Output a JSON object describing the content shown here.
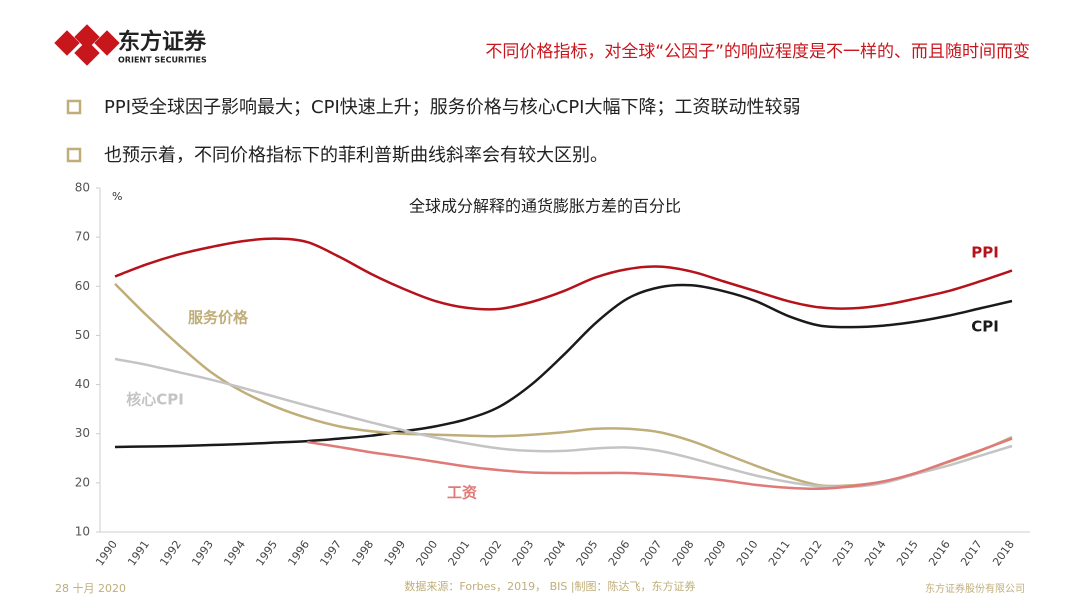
{
  "header": {
    "logo_cn": "东方证券",
    "logo_en": "ORIENT SECURITIES",
    "title": "不同价格指标，对全球“公因子”的响应程度是不一样的、而且随时间而变"
  },
  "bullets": [
    "PPI受全球因子影响最大；CPI快速上升；服务价格与核心CPI大幅下降；工资联动性较弱",
    "也预示着，不同价格指标下的菲利普斯曲线斜率会有较大区别。"
  ],
  "chart_data": {
    "type": "line",
    "title": "全球成分解释的通货膨胀方差的百分比",
    "y_label": "%",
    "categories": [
      "1990",
      "1991",
      "1992",
      "1993",
      "1994",
      "1995",
      "1996",
      "1997",
      "1998",
      "1999",
      "2000",
      "2001",
      "2002",
      "2003",
      "2004",
      "2005",
      "2006",
      "2007",
      "2008",
      "2009",
      "2010",
      "2011",
      "2012",
      "2013",
      "2014",
      "2015",
      "2016",
      "2017",
      "2018"
    ],
    "series": [
      {
        "name": "PPI",
        "color": "#b5121b",
        "values": [
          62,
          64.5,
          66.5,
          68,
          69.2,
          69.7,
          69,
          66,
          62.5,
          59.5,
          57,
          55.6,
          55.4,
          56.8,
          59,
          61.8,
          63.5,
          64,
          63,
          61,
          59,
          57,
          55.7,
          55.5,
          56.2,
          57.5,
          59,
          61,
          63.2
        ]
      },
      {
        "name": "CPI",
        "color": "#1a1a1a",
        "values": [
          27.3,
          27.4,
          27.5,
          27.7,
          27.9,
          28.2,
          28.5,
          29,
          29.6,
          30.5,
          31.5,
          33,
          35.5,
          40,
          46,
          52.5,
          57.5,
          59.8,
          60.2,
          59,
          57,
          54,
          52,
          51.7,
          52,
          52.8,
          54,
          55.5,
          57
        ]
      },
      {
        "name": "服务价格",
        "color": "#bfae7a",
        "values": [
          60.5,
          54,
          48,
          42.5,
          38.5,
          35.5,
          33.2,
          31.5,
          30.5,
          30,
          29.8,
          29.6,
          29.5,
          29.8,
          30.3,
          31,
          31,
          30.3,
          28.5,
          26,
          23.5,
          21.2,
          19.5,
          19.5,
          20.3,
          22,
          24.2,
          26.5,
          29.3
        ]
      },
      {
        "name": "核心CPI",
        "color": "#c4c4c4",
        "values": [
          45.2,
          44,
          42.5,
          41,
          39.3,
          37.5,
          35.7,
          34,
          32.3,
          30.7,
          29.2,
          28,
          27,
          26.5,
          26.5,
          27,
          27.2,
          26.5,
          25,
          23.2,
          21.5,
          20.2,
          19.3,
          19.2,
          20,
          21.8,
          23.5,
          25.5,
          27.5
        ]
      },
      {
        "name": "工资",
        "color": "#e07a78",
        "values": [
          null,
          null,
          null,
          null,
          null,
          null,
          28.3,
          27.3,
          26.2,
          25.3,
          24.3,
          23.3,
          22.6,
          22.1,
          22,
          22,
          22,
          21.7,
          21.2,
          20.5,
          19.6,
          19,
          18.8,
          19.3,
          20.3,
          22,
          24.3,
          26.6,
          29
        ]
      }
    ],
    "ylim": [
      10,
      80
    ],
    "yticks": [
      10,
      20,
      30,
      40,
      50,
      60,
      70,
      80
    ]
  },
  "footer": {
    "date": "28 十月 2020",
    "source": "数据来源：Forbes，2019， BIS |制图：陈达飞，东方证券",
    "company": "东方证券股份有限公司"
  }
}
